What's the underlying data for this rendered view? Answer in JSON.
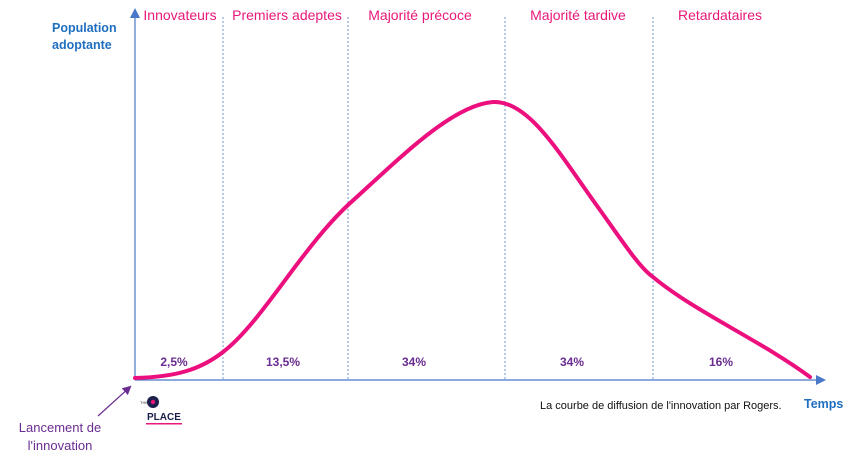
{
  "segments": [
    {
      "label": "Innovateurs",
      "percent": "2,5%"
    },
    {
      "label": "Premiers adeptes",
      "percent": "13,5%"
    },
    {
      "label": "Majorité précoce",
      "percent": "34%"
    },
    {
      "label": "Majorité tardive",
      "percent": "34%"
    },
    {
      "label": "Retardataires",
      "percent": "16%"
    }
  ],
  "y_axis_title_line1": "Population",
  "y_axis_title_line2": "adoptante",
  "x_axis_title": "Temps",
  "launch_label_line1": "Lancement de",
  "launch_label_line2": "l'innovation",
  "caption": "La courbe de diffusion de l'innovation par Rogers.",
  "logo": {
    "small_text": "THE",
    "big_text": "PLACE"
  },
  "colors": {
    "curve": "#ec0f7e",
    "segment_label": "#e8187a",
    "percent_label": "#6a2c91",
    "axis": "#4a78c8",
    "axis_title": "#1f6fc0",
    "divider": "#6f97d4",
    "launch_label": "#6a2c91"
  }
}
